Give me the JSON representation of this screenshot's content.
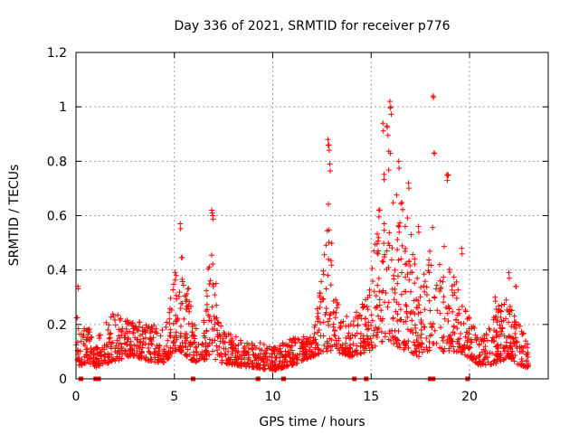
{
  "chart_data": {
    "type": "scatter",
    "title": "Day 336 of 2021, SRMTID for receiver p776",
    "xlabel": "GPS time / hours",
    "ylabel": "SRMTID / TECUs",
    "xlim": [
      0,
      24
    ],
    "ylim": [
      0,
      1.2
    ],
    "xticks": [
      0,
      5,
      10,
      15,
      20
    ],
    "yticks": [
      0,
      0.2,
      0.4,
      0.6,
      0.8,
      1,
      1.2
    ],
    "xtick_labels": [
      "0",
      "5",
      "10",
      "15",
      "20"
    ],
    "ytick_labels": [
      "0",
      "0.2",
      "0.4",
      "0.6",
      "0.8",
      "1",
      "1.2"
    ],
    "grid": true,
    "color": "#ff0000",
    "marker": "plus",
    "zero_markers_x": [
      0.25,
      1.0,
      1.15,
      5.95,
      9.25,
      10.55,
      14.15,
      14.75,
      18.0,
      18.15,
      19.9
    ],
    "envelope": [
      [
        0.0,
        0.05,
        0.25
      ],
      [
        0.3,
        0.05,
        0.18
      ],
      [
        0.6,
        0.06,
        0.2
      ],
      [
        1.0,
        0.04,
        0.12
      ],
      [
        1.3,
        0.05,
        0.2
      ],
      [
        2.0,
        0.06,
        0.25
      ],
      [
        2.5,
        0.08,
        0.22
      ],
      [
        3.0,
        0.08,
        0.22
      ],
      [
        3.5,
        0.07,
        0.2
      ],
      [
        4.0,
        0.06,
        0.2
      ],
      [
        4.5,
        0.06,
        0.18
      ],
      [
        5.0,
        0.1,
        0.4
      ],
      [
        5.3,
        0.1,
        0.5
      ],
      [
        5.7,
        0.08,
        0.4
      ],
      [
        6.0,
        0.06,
        0.2
      ],
      [
        6.5,
        0.07,
        0.24
      ],
      [
        6.9,
        0.08,
        0.55
      ],
      [
        7.3,
        0.06,
        0.2
      ],
      [
        8.0,
        0.05,
        0.16
      ],
      [
        9.0,
        0.04,
        0.14
      ],
      [
        10.0,
        0.03,
        0.12
      ],
      [
        11.0,
        0.05,
        0.15
      ],
      [
        12.0,
        0.08,
        0.16
      ],
      [
        12.6,
        0.1,
        0.45
      ],
      [
        12.9,
        0.1,
        0.75
      ],
      [
        13.2,
        0.1,
        0.3
      ],
      [
        14.0,
        0.08,
        0.22
      ],
      [
        14.8,
        0.1,
        0.3
      ],
      [
        15.3,
        0.12,
        0.6
      ],
      [
        15.8,
        0.15,
        0.92
      ],
      [
        16.3,
        0.12,
        0.7
      ],
      [
        16.9,
        0.1,
        0.6
      ],
      [
        17.4,
        0.08,
        0.35
      ],
      [
        17.9,
        0.1,
        0.45
      ],
      [
        18.2,
        0.12,
        0.6
      ],
      [
        18.6,
        0.1,
        0.55
      ],
      [
        19.0,
        0.1,
        0.4
      ],
      [
        19.5,
        0.1,
        0.35
      ],
      [
        19.9,
        0.08,
        0.25
      ],
      [
        20.5,
        0.05,
        0.15
      ],
      [
        21.0,
        0.05,
        0.2
      ],
      [
        21.5,
        0.06,
        0.28
      ],
      [
        22.0,
        0.08,
        0.3
      ],
      [
        22.5,
        0.05,
        0.22
      ],
      [
        23.0,
        0.04,
        0.12
      ]
    ],
    "peaks": [
      [
        0.1,
        0.34
      ],
      [
        5.3,
        0.57
      ],
      [
        6.9,
        0.62
      ],
      [
        6.95,
        0.6
      ],
      [
        12.8,
        0.88
      ],
      [
        12.85,
        0.86
      ],
      [
        12.9,
        0.79
      ],
      [
        15.95,
        1.02
      ],
      [
        16.0,
        1.0
      ],
      [
        15.8,
        0.93
      ],
      [
        15.6,
        0.94
      ],
      [
        16.4,
        0.8
      ],
      [
        16.9,
        0.72
      ],
      [
        17.4,
        0.56
      ],
      [
        18.15,
        1.04
      ],
      [
        18.2,
        0.83
      ],
      [
        18.85,
        0.75
      ],
      [
        18.9,
        0.75
      ],
      [
        19.6,
        0.48
      ],
      [
        22.0,
        0.39
      ],
      [
        22.35,
        0.34
      ],
      [
        21.3,
        0.3
      ]
    ]
  }
}
